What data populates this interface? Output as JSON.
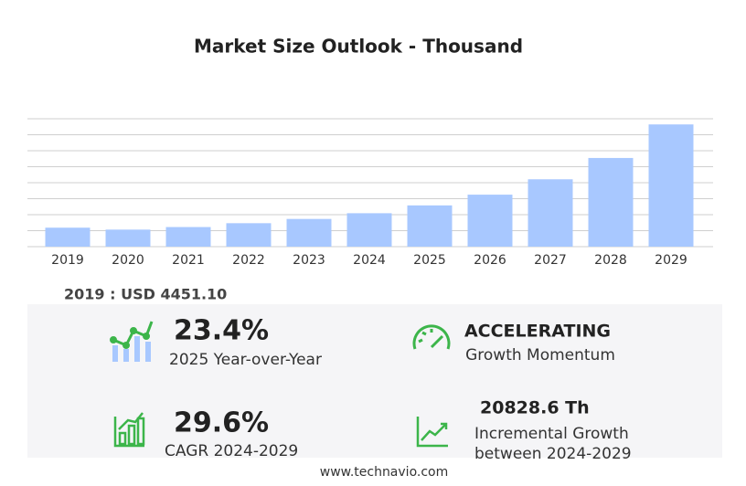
{
  "chart_data": {
    "type": "bar",
    "title": "Market Size Outlook  - Thousand",
    "categories": [
      "2019",
      "2020",
      "2021",
      "2022",
      "2023",
      "2024",
      "2025",
      "2026",
      "2027",
      "2028",
      "2029"
    ],
    "values": [
      4451.1,
      4000,
      4600,
      5500,
      6500,
      7842,
      9677,
      12200,
      15800,
      20800,
      28671
    ],
    "color": "#a8c8ff",
    "ylim": [
      0,
      30000
    ],
    "gridlines": [
      0,
      3750,
      7500,
      11250,
      15000,
      18750,
      22500,
      26250,
      30000
    ],
    "grid": true
  },
  "stats": {
    "base": "2019 : USD  4451.10",
    "yoy_value": "23.4%",
    "yoy_label": "2025 Year-over-Year",
    "momentum_value": "ACCELERATING",
    "momentum_label": "Growth Momentum",
    "cagr_value": "29.6%",
    "cagr_label": "CAGR 2024-2029",
    "incr_value": "20828.6 Th",
    "incr_label_1": "Incremental Growth",
    "incr_label_2": "between 2024-2029"
  },
  "footer": "www.technavio.com"
}
